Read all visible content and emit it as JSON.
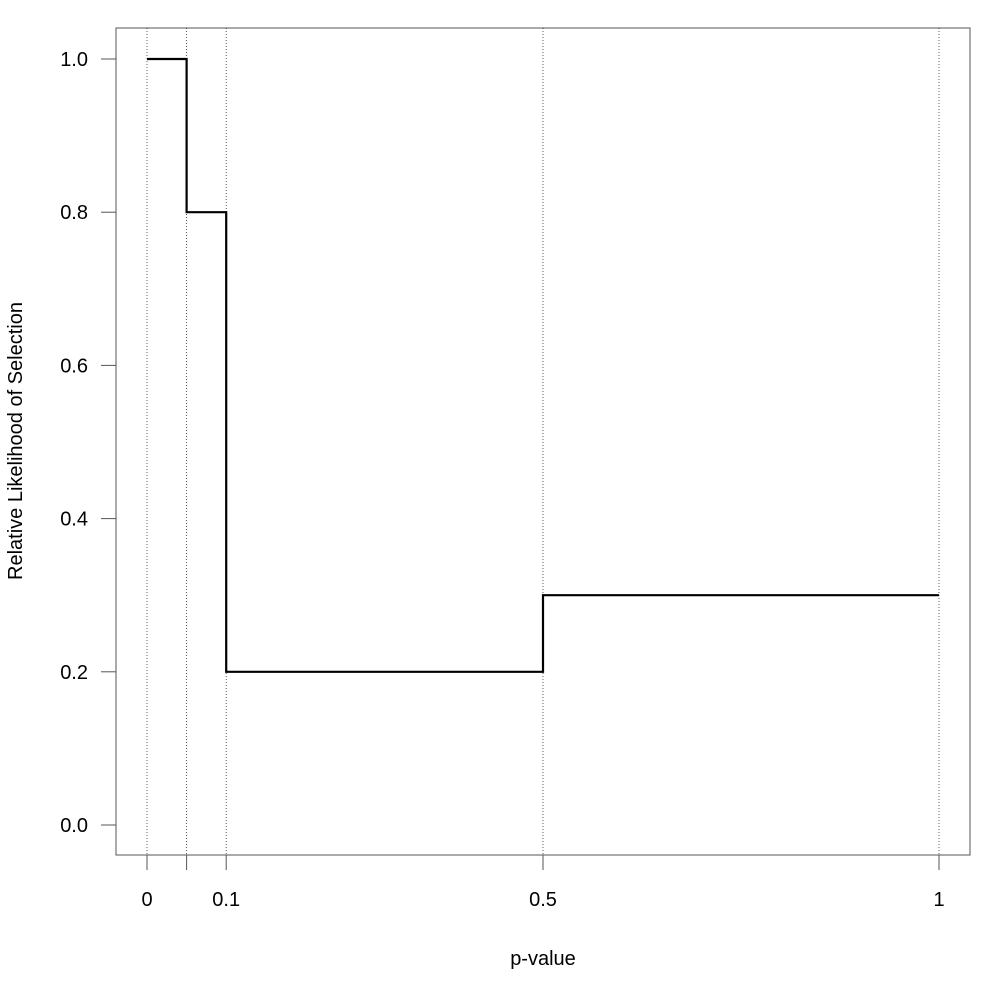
{
  "chart_data": {
    "type": "line",
    "subtype": "step",
    "title": "",
    "xlabel": "p-value",
    "ylabel": "Relative Likelihood of Selection",
    "xlim": [
      0,
      1
    ],
    "ylim": [
      0,
      1
    ],
    "x_ticks": [
      0,
      0.05,
      0.1,
      0.5,
      1
    ],
    "x_tick_labels": [
      "0",
      "",
      "0.1",
      "0.5",
      "1"
    ],
    "y_ticks": [
      0,
      0.2,
      0.4,
      0.6,
      0.8,
      1.0
    ],
    "y_tick_labels": [
      "0.0",
      "0.2",
      "0.4",
      "0.6",
      "0.8",
      "1.0"
    ],
    "cutpoints": [
      0,
      0.05,
      0.1,
      0.5,
      1
    ],
    "grid": "dotted vertical lines at cutpoints",
    "segments": [
      {
        "x_start": 0,
        "x_end": 0.05,
        "y": 1.0
      },
      {
        "x_start": 0.05,
        "x_end": 0.1,
        "y": 0.8
      },
      {
        "x_start": 0.1,
        "x_end": 0.5,
        "y": 0.2
      },
      {
        "x_start": 0.5,
        "x_end": 1,
        "y": 0.3
      }
    ],
    "line_color": "#000000"
  }
}
